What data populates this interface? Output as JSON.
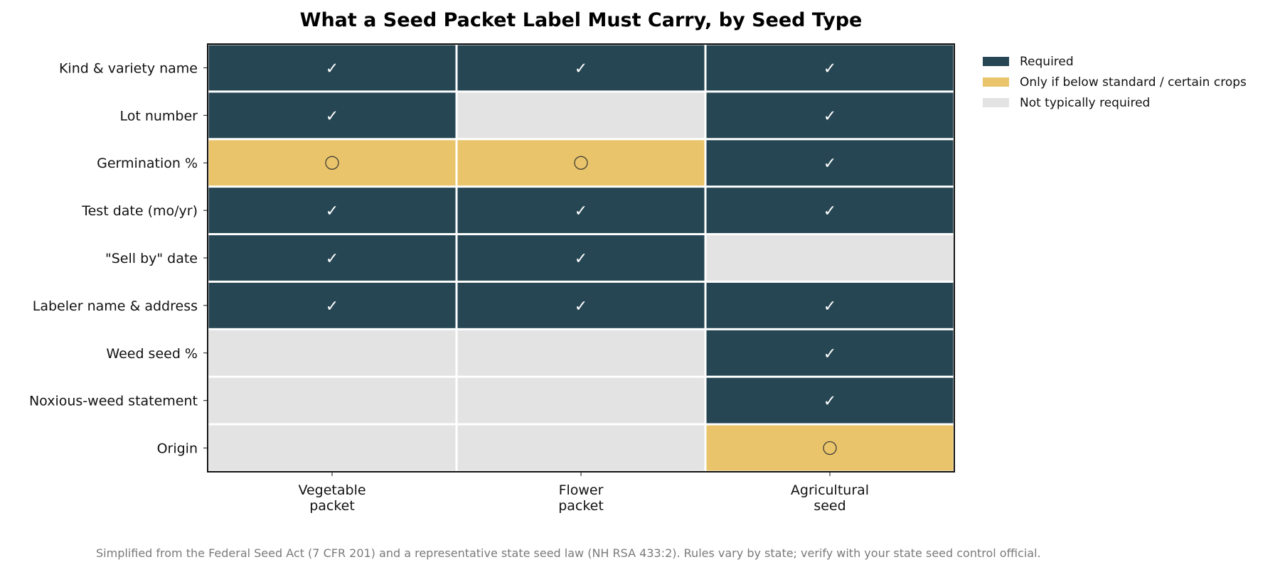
{
  "chart_data": {
    "type": "heatmap",
    "title": "What a Seed Packet Label Must Carry, by Seed Type",
    "rows": [
      "Kind & variety name",
      "Lot number",
      "Germination %",
      "Test date (mo/yr)",
      "\"Sell by\" date",
      "Labeler name & address",
      "Weed seed %",
      "Noxious-weed statement",
      "Origin"
    ],
    "columns": [
      [
        "Vegetable",
        "packet"
      ],
      [
        "Flower",
        "packet"
      ],
      [
        "Agricultural",
        "seed"
      ]
    ],
    "values": [
      [
        "required",
        "required",
        "required"
      ],
      [
        "required",
        "not",
        "required"
      ],
      [
        "conditional",
        "conditional",
        "required"
      ],
      [
        "required",
        "required",
        "required"
      ],
      [
        "required",
        "required",
        "not"
      ],
      [
        "required",
        "required",
        "required"
      ],
      [
        "not",
        "not",
        "required"
      ],
      [
        "not",
        "not",
        "required"
      ],
      [
        "not",
        "not",
        "conditional"
      ]
    ],
    "categories": {
      "required": {
        "label": "Required",
        "color": "#264653",
        "symbol": "✓"
      },
      "conditional": {
        "label": "Only if below standard / certain crops",
        "color": "#e9c46a",
        "symbol": "○"
      },
      "not": {
        "label": "Not typically required",
        "color": "#e3e3e3",
        "symbol": ""
      }
    },
    "legend_order": [
      "required",
      "conditional",
      "not"
    ],
    "legend_position": "right-top",
    "grid": false
  },
  "footnote": "Simplified from the Federal Seed Act (7 CFR 201) and a representative state seed law (NH RSA 433:2). Rules vary by state; verify with your state seed control official."
}
